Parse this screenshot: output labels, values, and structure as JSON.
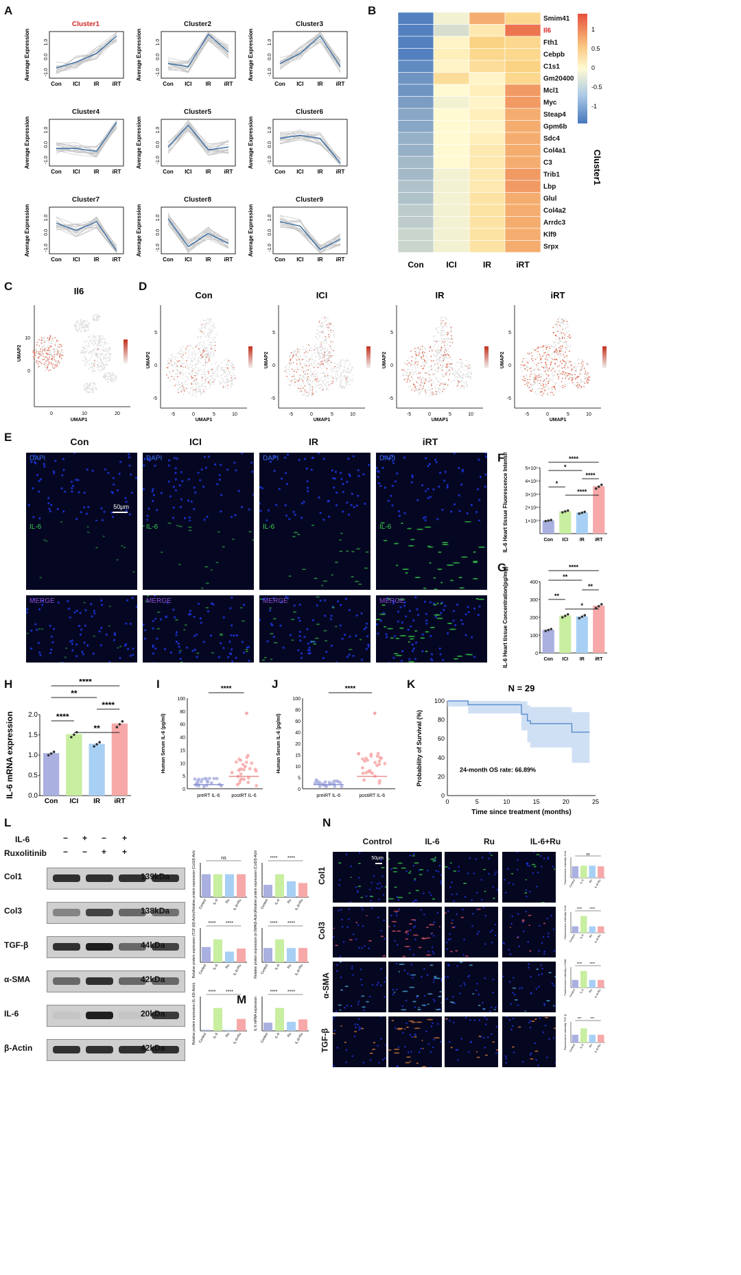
{
  "panels": {
    "A": "A",
    "B": "B",
    "C": "C",
    "D": "D",
    "E": "E",
    "F": "F",
    "G": "G",
    "H": "H",
    "I": "I",
    "J": "J",
    "K": "K",
    "L": "L",
    "M": "M",
    "N": "N"
  },
  "conditions": [
    "Con",
    "ICI",
    "IR",
    "iRT"
  ],
  "panelA": {
    "ylabel": "Average Expression",
    "clusters": [
      {
        "name": "Cluster1",
        "highlight": true,
        "mean": [
          -0.9,
          -0.5,
          0.1,
          1.3
        ]
      },
      {
        "name": "Cluster2",
        "highlight": false,
        "mean": [
          -0.6,
          -0.8,
          1.4,
          0.2
        ]
      },
      {
        "name": "Cluster3",
        "highlight": false,
        "mean": [
          -0.6,
          0.1,
          1.3,
          -0.8
        ]
      },
      {
        "name": "Cluster4",
        "highlight": false,
        "mean": [
          -0.4,
          -0.4,
          -0.6,
          1.4
        ]
      },
      {
        "name": "Cluster5",
        "highlight": false,
        "mean": [
          -0.3,
          1.2,
          -0.5,
          -0.3
        ]
      },
      {
        "name": "Cluster6",
        "highlight": false,
        "mean": [
          0.3,
          0.5,
          0.3,
          -1.4
        ]
      },
      {
        "name": "Cluster7",
        "highlight": false,
        "mean": [
          0.5,
          0.0,
          0.6,
          -1.4
        ]
      },
      {
        "name": "Cluster8",
        "highlight": false,
        "mean": [
          0.8,
          -1.1,
          -0.2,
          -0.9
        ]
      },
      {
        "name": "Cluster9",
        "highlight": false,
        "mean": [
          0.6,
          0.3,
          -1.3,
          -0.6
        ]
      }
    ]
  },
  "panelB": {
    "title": "Cluster1",
    "legend_ticks": [
      "1",
      "0.5",
      "0",
      "-0.5",
      "-1"
    ],
    "genes": [
      "Smim41",
      "Il6",
      "Fth1",
      "Cebpb",
      "C1s1",
      "Gm20400",
      "Mcl1",
      "Myc",
      "Steap4",
      "Gpm6b",
      "Sdc4",
      "Col4a1",
      "C3",
      "Trib1",
      "Lbp",
      "Glul",
      "Col4a2",
      "Arrdc3",
      "Klf9",
      "Srpx"
    ],
    "highlight_gene": "Il6",
    "values": [
      [
        -1.3,
        -0.1,
        0.9,
        0.6
      ],
      [
        -1.3,
        -0.3,
        0.3,
        1.2
      ],
      [
        -1.3,
        0.1,
        0.7,
        0.6
      ],
      [
        -1.3,
        0.2,
        0.6,
        0.6
      ],
      [
        -1.2,
        0.1,
        0.5,
        0.7
      ],
      [
        -1.1,
        0.5,
        0.1,
        0.6
      ],
      [
        -1.1,
        0.0,
        0.2,
        1.0
      ],
      [
        -1.0,
        -0.1,
        0.1,
        1.0
      ],
      [
        -0.9,
        0.0,
        0.2,
        0.9
      ],
      [
        -0.9,
        0.0,
        0.1,
        0.9
      ],
      [
        -0.8,
        0.0,
        0.2,
        0.9
      ],
      [
        -0.8,
        0.0,
        0.3,
        0.9
      ],
      [
        -0.7,
        0.0,
        0.3,
        0.9
      ],
      [
        -0.7,
        -0.1,
        0.3,
        1.0
      ],
      [
        -0.6,
        -0.1,
        0.3,
        1.0
      ],
      [
        -0.6,
        -0.1,
        0.4,
        0.9
      ],
      [
        -0.5,
        -0.1,
        0.4,
        0.9
      ],
      [
        -0.5,
        -0.1,
        0.4,
        0.9
      ],
      [
        -0.4,
        -0.1,
        0.4,
        0.9
      ],
      [
        -0.4,
        -0.1,
        0.4,
        0.9
      ]
    ]
  },
  "panelC": {
    "title": "Il6",
    "xlabel": "UMAP1",
    "ylabel": "UMAP2",
    "xticks": [
      "0",
      "10",
      "20"
    ],
    "yticks": [
      "10",
      "0"
    ]
  },
  "panelD": {
    "titles": [
      "Con",
      "ICI",
      "IR",
      "iRT"
    ],
    "xlabel": "UMAP1",
    "ylabel": "UMAP2",
    "xticks": [
      "-5",
      "0",
      "5",
      "10"
    ],
    "yticks": [
      "5",
      "0",
      "-5"
    ]
  },
  "panelE": {
    "columns": [
      "Con",
      "ICI",
      "IR",
      "iRT"
    ],
    "rows": [
      "DAPI",
      "IL-6",
      "MERGE"
    ],
    "scalebar": "50μm"
  },
  "panelF": {
    "ylabel": "IL-6 Heart tissue Fluorescence Intensity",
    "yticks": [
      "5×10⁶",
      "4×10⁶",
      "3×10⁶",
      "2×10⁶",
      "1×10⁶"
    ],
    "sig": [
      "****",
      "*",
      "****",
      "*",
      "****"
    ],
    "values": [
      1.0,
      1.7,
      1.6,
      3.6
    ]
  },
  "panelG": {
    "ylabel": "IL-6 Heart tissue Concentration(pg/mg)",
    "yticks": [
      "400",
      "300",
      "200",
      "100",
      "0"
    ],
    "sig": [
      "****",
      "**",
      "**",
      "**",
      "*"
    ],
    "values": [
      130,
      210,
      205,
      265
    ]
  },
  "panelH": {
    "ylabel": "IL-6 mRNA expression",
    "yticks": [
      "2.0",
      "1.5",
      "1.0",
      "0.5",
      "0.0"
    ],
    "sig": [
      "****",
      "**",
      "****",
      "****",
      "**"
    ],
    "values": [
      1.05,
      1.52,
      1.28,
      1.78
    ]
  },
  "panelI": {
    "ylabel": "Human Serum IL-6 (pg/ml)",
    "groups": [
      "preRT IL-6",
      "postRT IL-6"
    ],
    "sig": "****",
    "yticks": [
      "100",
      "80",
      "60",
      "40",
      "15",
      "10",
      "5",
      "0"
    ]
  },
  "panelJ": {
    "ylabel": "Human Serum IL-6 (pg/ml)",
    "groups": [
      "preiRT IL-6",
      "postiRT IL-6"
    ],
    "sig": "****",
    "yticks": [
      "100",
      "80",
      "60",
      "40",
      "20",
      "15",
      "10",
      "5",
      "0"
    ]
  },
  "panelK": {
    "title": "N = 29",
    "ylabel": "Probability of Survival (%)",
    "xlabel": "Time since treatment (months)",
    "xticks": [
      "0",
      "5",
      "10",
      "15",
      "20",
      "25"
    ],
    "yticks": [
      "100",
      "80",
      "60",
      "40",
      "20",
      "0"
    ],
    "annotation": "24-month OS rate: 66.89%",
    "chart_data": {
      "type": "line",
      "x": [
        0,
        3.5,
        12.5,
        13.5,
        14,
        21,
        24
      ],
      "y": [
        100,
        96,
        86,
        79,
        76,
        67,
        67
      ]
    }
  },
  "panelL": {
    "treat_labels": [
      "IL-6",
      "Ruxolitinib"
    ],
    "treat_signs": [
      [
        "−",
        "+",
        "−",
        "+"
      ],
      [
        "−",
        "−",
        "+",
        "+"
      ]
    ],
    "blots": [
      {
        "name": "Col1",
        "kda": "139kDa"
      },
      {
        "name": "Col3",
        "kda": "138kDa"
      },
      {
        "name": "TGF-β",
        "kda": "44kDa"
      },
      {
        "name": "α-SMA",
        "kda": "42kDa"
      },
      {
        "name": "IL-6",
        "kda": "20kDa"
      },
      {
        "name": "β-Actin",
        "kda": "42kDa"
      }
    ],
    "quant": [
      {
        "ylabel": "Relative protein expression (Col1/β-Actin)",
        "sig": [
          "ns"
        ],
        "values": [
          0.9,
          0.9,
          0.9,
          0.9
        ]
      },
      {
        "ylabel": "Relative protein expression (Col3/β-Actin)",
        "sig": [
          "****",
          "****"
        ],
        "values": [
          0.7,
          1.3,
          0.9,
          0.8
        ]
      },
      {
        "ylabel": "Relative protein expression (TGF-β/β-Actin)",
        "sig": [
          "****",
          "****"
        ],
        "values": [
          1.0,
          1.5,
          0.7,
          0.9
        ]
      },
      {
        "ylabel": "Relative protein expression (α-SMA/β-Actin)",
        "sig": [
          "****",
          "****"
        ],
        "values": [
          1.0,
          1.6,
          1.0,
          1.0
        ]
      },
      {
        "ylabel": "Relative protein expression (IL-6/β-Actin)",
        "sig": [
          "****",
          "****"
        ],
        "values": [
          0.05,
          1.15,
          0.05,
          0.6
        ]
      }
    ],
    "xgroups": [
      "Control",
      "IL-6",
      "Ru",
      "IL-6+Ru"
    ]
  },
  "panelM": {
    "ylabel": "IL-6 mRNA expression",
    "sig": [
      "****",
      "****"
    ],
    "values": [
      1.0,
      2.8,
      1.1,
      1.4
    ]
  },
  "panelN": {
    "columns": [
      "Control",
      "IL-6",
      "Ru",
      "IL-6+Ru"
    ],
    "rows": [
      "Col1",
      "Col3",
      "α-SMA",
      "TGF-β"
    ],
    "scalebar": "50μm",
    "quant": [
      {
        "ylabel": "Fluorescence Intensity Col1",
        "sig": [
          "ns"
        ],
        "values": [
          0.9,
          0.95,
          0.95,
          0.9
        ]
      },
      {
        "ylabel": "Fluorescence Intensity Col3",
        "sig": [
          "****",
          "****"
        ],
        "values": [
          0.5,
          1.3,
          0.5,
          0.5
        ]
      },
      {
        "ylabel": "Fluorescence Intensity α-SMA",
        "sig": [
          "****",
          "****"
        ],
        "values": [
          0.6,
          1.3,
          0.6,
          0.6
        ]
      },
      {
        "ylabel": "Fluorescence Intensity TGF-β",
        "sig": [
          "***",
          "***"
        ],
        "values": [
          0.6,
          1.1,
          0.6,
          0.6
        ]
      }
    ]
  },
  "colors": {
    "con": "#aab0e0",
    "ici": "#c8eea0",
    "ir": "#a8d0f5",
    "irt": "#f7a8a8",
    "highlight": "#d62828",
    "umap_red": "#d9573a",
    "umap_gray": "#d9d9d9",
    "km_line": "#5b8fd0",
    "km_band": "#bcd3f0",
    "dapi": "#1c33d8",
    "il6_green": "#38d04a",
    "merge_label": "#8a4fd0"
  }
}
